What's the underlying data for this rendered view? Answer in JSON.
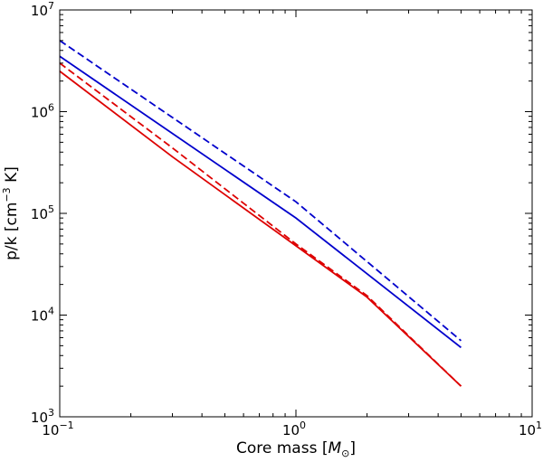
{
  "chart_data": {
    "type": "line",
    "title": "",
    "xlabel": "Core mass",
    "xlabel_unit": "M",
    "xlabel_unit_sub": "⊙",
    "ylabel": "p/k [cm",
    "ylabel_sup": "−3",
    "ylabel_tail": " K]",
    "xscale": "log",
    "yscale": "log",
    "xlim": [
      0.1,
      10
    ],
    "ylim": [
      1000,
      10000000
    ],
    "grid": false,
    "x_ticks": [
      {
        "value": 0.1,
        "base": "10",
        "exp": "−1"
      },
      {
        "value": 1,
        "base": "10",
        "exp": "0"
      },
      {
        "value": 10,
        "base": "10",
        "exp": "1"
      }
    ],
    "y_ticks": [
      {
        "value": 1000,
        "base": "10",
        "exp": "3"
      },
      {
        "value": 10000,
        "base": "10",
        "exp": "4"
      },
      {
        "value": 100000,
        "base": "10",
        "exp": "5"
      },
      {
        "value": 1000000,
        "base": "10",
        "exp": "6"
      },
      {
        "value": 10000000,
        "base": "10",
        "exp": "7"
      }
    ],
    "series": [
      {
        "color": "#0000cc",
        "dash": "dashed",
        "x": [
          0.1,
          1,
          5
        ],
        "y": [
          5000000,
          130000,
          5600
        ]
      },
      {
        "color": "#0000cc",
        "dash": "solid",
        "x": [
          0.1,
          1,
          5
        ],
        "y": [
          3500000,
          90000,
          4800
        ]
      },
      {
        "color": "#dd0000",
        "dash": "dashed",
        "x": [
          0.1,
          0.3,
          1,
          2,
          5
        ],
        "y": [
          3000000,
          440000,
          50000,
          15500,
          2000
        ]
      },
      {
        "color": "#dd0000",
        "dash": "solid",
        "x": [
          0.1,
          0.3,
          1,
          2,
          5
        ],
        "y": [
          2500000,
          360000,
          48000,
          15000,
          2000
        ]
      }
    ]
  }
}
